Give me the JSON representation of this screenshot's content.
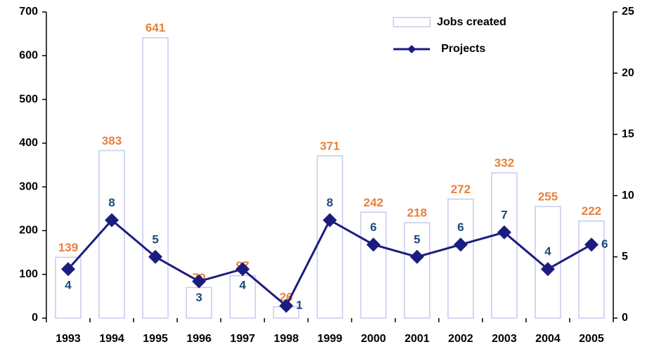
{
  "chart_data": {
    "type": "bar",
    "categories": [
      "1993",
      "1994",
      "1995",
      "1996",
      "1997",
      "1998",
      "1999",
      "2000",
      "2001",
      "2002",
      "2003",
      "2004",
      "2005"
    ],
    "series": [
      {
        "name": "Jobs created",
        "type": "bar",
        "color": "#c8c8f0",
        "label_color": "#e8803a",
        "values": [
          139,
          383,
          641,
          70,
          97,
          26,
          371,
          242,
          218,
          272,
          332,
          255,
          222
        ]
      },
      {
        "name": "Projects",
        "type": "line",
        "axis": "y2",
        "color": "#1c1c80",
        "label_color": "#1a4a7a",
        "values": [
          4,
          8,
          5,
          3,
          4,
          1,
          8,
          6,
          5,
          6,
          7,
          4,
          6
        ]
      }
    ],
    "ylim": [
      0,
      700
    ],
    "yticks": [
      0,
      100,
      200,
      300,
      400,
      500,
      600,
      700
    ],
    "y2lim": [
      0,
      25
    ],
    "y2ticks": [
      0,
      5,
      10,
      15,
      20,
      25
    ],
    "legend": "top-right"
  }
}
